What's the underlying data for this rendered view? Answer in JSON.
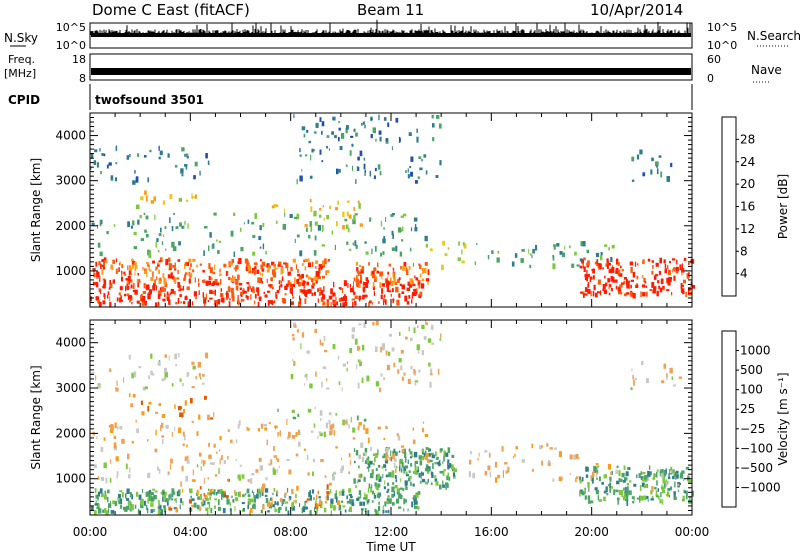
{
  "header": {
    "title": "Dome C East (fitACF)",
    "beam": "Beam 11",
    "date": "10/Apr/2014"
  },
  "strip": {
    "nsky_label": "N.Sky",
    "nsky_ticks": [
      "10^5",
      "10^0"
    ],
    "nsearch_label": "N.Search",
    "nsearch_ticks": [
      "10^5",
      "10^0"
    ],
    "freq_label_1": "Freq.",
    "freq_label_2": "[MHz]",
    "freq_ticks": [
      "18",
      "8"
    ],
    "nave_label": "Nave",
    "nave_ticks": [
      "60",
      "0"
    ],
    "cpid_label": "CPID",
    "cpid_value": "twofsound 3501"
  },
  "chart_data": [
    {
      "type": "heatmap",
      "name": "power-panel",
      "ylabel": "Slant Range [km]",
      "xlabel": "",
      "x_ticks": [
        "00:00",
        "04:00",
        "08:00",
        "12:00",
        "16:00",
        "20:00",
        "00:00"
      ],
      "xlim_hours": [
        0,
        24
      ],
      "ylim_km": [
        200,
        4500
      ],
      "y_ticks": [
        1000,
        2000,
        3000,
        4000
      ],
      "colorbar_label": "Power [dB]",
      "colorbar_ticks": [
        "28",
        "24",
        "20",
        "16",
        "12",
        "8",
        "4"
      ],
      "colorbar_colors": [
        "#0000ff",
        "#1f4fb0",
        "#2e7d8a",
        "#4aa564",
        "#7cc83c",
        "#e8c81e",
        "#ff9a14",
        "#ff5a0a",
        "#ff1a00"
      ],
      "regions": [
        {
          "t0": 0,
          "t1": 13.2,
          "r0": 300,
          "r1": 800,
          "level": 8
        },
        {
          "t0": 0,
          "t1": 9.5,
          "r0": 800,
          "r1": 1300,
          "level": 7
        },
        {
          "t0": 10.5,
          "t1": 13.5,
          "r0": 700,
          "r1": 1200,
          "level": 7
        },
        {
          "t0": 13.5,
          "t1": 15,
          "r0": 1000,
          "r1": 1700,
          "level": 5
        },
        {
          "t0": 19.5,
          "t1": 24,
          "r0": 500,
          "r1": 1300,
          "level": 8
        },
        {
          "t0": 1.5,
          "t1": 4.5,
          "r0": 2400,
          "r1": 2800,
          "level": 5
        },
        {
          "t0": 7,
          "t1": 11,
          "r0": 2000,
          "r1": 2600,
          "level": 5
        },
        {
          "t0": 0,
          "t1": 13.5,
          "r0": 1400,
          "r1": 2300,
          "level": 3
        },
        {
          "t0": 0,
          "t1": 5,
          "r0": 3000,
          "r1": 3800,
          "level": 2
        },
        {
          "t0": 8,
          "t1": 14,
          "r0": 3000,
          "r1": 4500,
          "level": 2
        },
        {
          "t0": 15,
          "t1": 21,
          "r0": 1100,
          "r1": 1700,
          "level": 3
        },
        {
          "t0": 21.5,
          "t1": 23.5,
          "r0": 3000,
          "r1": 3700,
          "level": 2
        }
      ]
    },
    {
      "type": "heatmap",
      "name": "velocity-panel",
      "ylabel": "Slant Range [km]",
      "xlabel": "Time UT",
      "x_ticks": [
        "00:00",
        "04:00",
        "08:00",
        "12:00",
        "16:00",
        "20:00",
        "00:00"
      ],
      "xlim_hours": [
        0,
        24
      ],
      "ylim_km": [
        200,
        4500
      ],
      "y_ticks": [
        1000,
        2000,
        3000,
        4000
      ],
      "colorbar_label": "Velocity [m s⁻¹]",
      "colorbar_ticks": [
        "1000",
        "500",
        "100",
        "25",
        "−25",
        "−100",
        "−500",
        "−1000"
      ],
      "colorbar_colors": [
        "#ff0000",
        "#e05a00",
        "#ff9a14",
        "#f0a050",
        "#c8c8c8",
        "#7cc83c",
        "#4aa564",
        "#2e7d8a",
        "#1f4fb0",
        "#0000ff"
      ],
      "regions": [
        {
          "t0": 0,
          "t1": 13.2,
          "r0": 300,
          "r1": 800,
          "level": 6
        },
        {
          "t0": 3,
          "t1": 10,
          "r0": 300,
          "r1": 1000,
          "level": 2
        },
        {
          "t0": 0,
          "t1": 13,
          "r0": 1000,
          "r1": 1400,
          "level": 4
        },
        {
          "t0": 10.5,
          "t1": 14.5,
          "r0": 800,
          "r1": 1700,
          "level": 6
        },
        {
          "t0": 19.5,
          "t1": 24,
          "r0": 500,
          "r1": 1300,
          "level": 6
        },
        {
          "t0": 22,
          "t1": 24,
          "r0": 800,
          "r1": 1200,
          "level": 4
        },
        {
          "t0": 1.5,
          "t1": 5,
          "r0": 2300,
          "r1": 2900,
          "level": 2
        },
        {
          "t0": 7,
          "t1": 11,
          "r0": 2000,
          "r1": 2600,
          "level": 5
        },
        {
          "t0": 0,
          "t1": 13.5,
          "r0": 1400,
          "r1": 2300,
          "level": 3
        },
        {
          "t0": 0,
          "t1": 5,
          "r0": 3000,
          "r1": 3800,
          "level": 4
        },
        {
          "t0": 8,
          "t1": 14,
          "r0": 3000,
          "r1": 4500,
          "level": 4
        },
        {
          "t0": 15,
          "t1": 21,
          "r0": 1000,
          "r1": 1800,
          "level": 3
        },
        {
          "t0": 21.5,
          "t1": 23.5,
          "r0": 3000,
          "r1": 3700,
          "level": 4
        }
      ]
    }
  ]
}
